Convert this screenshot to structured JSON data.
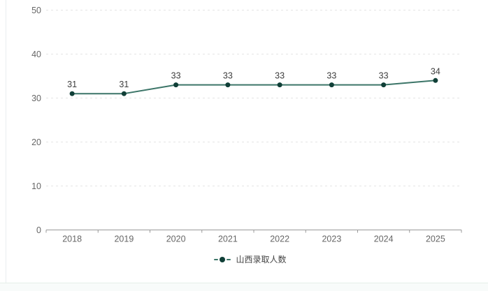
{
  "page": {
    "background_color": "#ffffff",
    "card_border_color": "#e9edef",
    "bottom_strip_color": "#f8fbfa"
  },
  "chart_data": {
    "type": "line",
    "title": "",
    "categories": [
      "2018",
      "2019",
      "2020",
      "2021",
      "2022",
      "2023",
      "2024",
      "2025"
    ],
    "series": [
      {
        "name": "山西录取人数",
        "values": [
          31,
          31,
          33,
          33,
          33,
          33,
          33,
          34
        ],
        "line_color": "#3c7568",
        "point_color": "#103f37"
      }
    ],
    "data_labels": true,
    "ylim": [
      0,
      50
    ],
    "yticks": [
      0,
      10,
      20,
      30,
      40,
      50
    ],
    "xlabel": "",
    "ylabel": "",
    "grid": "horizontal-dashed",
    "legend_position": "bottom",
    "colors": {
      "grid_color": "#e4e4e4",
      "axis_line_color": "#999999",
      "axis_label_color": "#666666",
      "data_label_color": "#3d3d3d",
      "legend_text_color": "#444444"
    }
  }
}
